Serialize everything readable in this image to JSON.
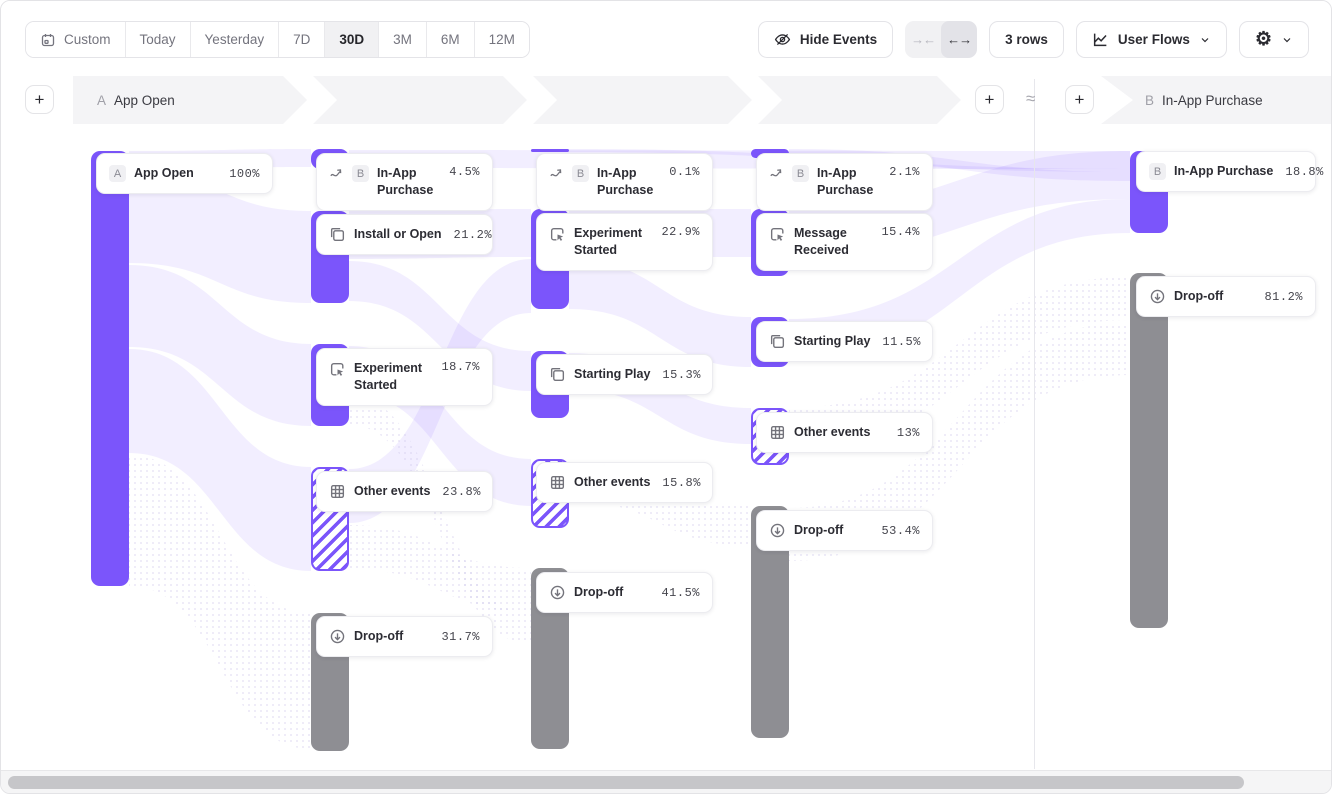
{
  "toolbar": {
    "ranges": [
      "Custom",
      "Today",
      "Yesterday",
      "7D",
      "30D",
      "3M",
      "6M",
      "12M"
    ],
    "active_range": "30D",
    "hide_events": "Hide Events",
    "rows": "3 rows",
    "view": "User Flows"
  },
  "icons": {
    "collapse": "→←",
    "expand": "←→",
    "gear": "⚙",
    "approx": "≈",
    "plus": "+"
  },
  "header": {
    "start_badge": "A",
    "start_label": "App Open",
    "end_badge": "B",
    "end_label": "In-App Purchase"
  },
  "colors": {
    "accent_purple": "#7b55fb",
    "dropoff_gray": "#8e8e93",
    "ribbon_tint": "rgba(123,85,251,0.10)"
  },
  "chart_data": {
    "type": "sankey",
    "unit": "%",
    "title": "User Flows: App Open → In-App Purchase",
    "columns": [
      {
        "name": "step-1",
        "nodes": [
          {
            "label": "App Open",
            "badge": "A",
            "pct": "100%",
            "value": 100,
            "kind": "event",
            "icon": null,
            "bar": [
              90,
              150,
              435
            ],
            "card": [
              95,
              152,
              40
            ],
            "nowrap": true
          }
        ]
      },
      {
        "name": "step-2",
        "nodes": [
          {
            "label": "In-App Purchase",
            "badge": "B",
            "pct": "4.5%",
            "value": 4.5,
            "kind": "goal",
            "icon": "flow-arrow-icon",
            "bar": [
              310,
              148,
              20
            ],
            "card": [
              315,
              152,
              50
            ]
          },
          {
            "label": "Install or Open",
            "pct": "21.2%",
            "value": 21.2,
            "kind": "event",
            "icon": "copy-icon",
            "bar": [
              310,
              210,
              92
            ],
            "card": [
              315,
              213,
              40
            ],
            "nowrap": true
          },
          {
            "label": "Experiment Started",
            "pct": "18.7%",
            "value": 18.7,
            "kind": "event",
            "icon": "click-icon",
            "bar": [
              310,
              343,
              82
            ],
            "card": [
              315,
              347,
              50
            ]
          },
          {
            "label": "Other events",
            "pct": "23.8%",
            "value": 23.8,
            "kind": "other",
            "icon": "grid-icon",
            "bar": [
              310,
              466,
              104
            ],
            "card": [
              315,
              470,
              40
            ],
            "nowrap": true
          },
          {
            "label": "Drop-off",
            "pct": "31.7%",
            "value": 31.7,
            "kind": "dropoff",
            "icon": "dropoff-icon",
            "bar": [
              310,
              612,
              138
            ],
            "card": [
              315,
              615,
              40
            ],
            "nowrap": true
          }
        ]
      },
      {
        "name": "step-3",
        "nodes": [
          {
            "label": "In-App Purchase",
            "badge": "B",
            "pct": "0.1%",
            "value": 0.1,
            "kind": "goal",
            "icon": "flow-arrow-icon",
            "bar": [
              530,
              148,
              3
            ],
            "card": [
              535,
              152,
              50
            ]
          },
          {
            "label": "Experiment Started",
            "pct": "22.9%",
            "value": 22.9,
            "kind": "event",
            "icon": "click-icon",
            "bar": [
              530,
              208,
              100
            ],
            "card": [
              535,
              212,
              50
            ]
          },
          {
            "label": "Starting Play",
            "pct": "15.3%",
            "value": 15.3,
            "kind": "event",
            "icon": "copy-icon",
            "bar": [
              530,
              350,
              67
            ],
            "card": [
              535,
              353,
              40
            ],
            "nowrap": true
          },
          {
            "label": "Other events",
            "pct": "15.8%",
            "value": 15.8,
            "kind": "other",
            "icon": "grid-icon",
            "bar": [
              530,
              458,
              69
            ],
            "card": [
              535,
              461,
              40
            ],
            "nowrap": true
          },
          {
            "label": "Drop-off",
            "pct": "41.5%",
            "value": 41.5,
            "kind": "dropoff",
            "icon": "dropoff-icon",
            "bar": [
              530,
              567,
              181
            ],
            "card": [
              535,
              571,
              40
            ],
            "nowrap": true
          }
        ]
      },
      {
        "name": "step-4",
        "nodes": [
          {
            "label": "In-App Purchase",
            "badge": "B",
            "pct": "2.1%",
            "value": 2.1,
            "kind": "goal",
            "icon": "flow-arrow-icon",
            "bar": [
              750,
              148,
              9
            ],
            "card": [
              755,
              152,
              50
            ]
          },
          {
            "label": "Message Received",
            "pct": "15.4%",
            "value": 15.4,
            "kind": "event",
            "icon": "click-icon",
            "bar": [
              750,
              208,
              67
            ],
            "card": [
              755,
              212,
              50
            ]
          },
          {
            "label": "Starting Play",
            "pct": "11.5%",
            "value": 11.5,
            "kind": "event",
            "icon": "copy-icon",
            "bar": [
              750,
              316,
              50
            ],
            "card": [
              755,
              320,
              40
            ],
            "nowrap": true
          },
          {
            "label": "Other events",
            "pct": "13%",
            "value": 13,
            "kind": "other",
            "icon": "grid-icon",
            "bar": [
              750,
              407,
              57
            ],
            "card": [
              755,
              411,
              40
            ],
            "nowrap": true
          },
          {
            "label": "Drop-off",
            "pct": "53.4%",
            "value": 53.4,
            "kind": "dropoff",
            "icon": "dropoff-icon",
            "bar": [
              750,
              505,
              232
            ],
            "card": [
              755,
              509,
              40
            ],
            "nowrap": true
          }
        ]
      },
      {
        "name": "goal",
        "nodes": [
          {
            "label": "In-App Purchase",
            "badge": "B",
            "pct": "18.8%",
            "value": 18.8,
            "kind": "goal-final",
            "icon": null,
            "bar": [
              1129,
              150,
              82
            ],
            "card": [
              1135,
              150,
              40
            ],
            "nowrap": true
          },
          {
            "label": "Drop-off",
            "pct": "81.2%",
            "value": 81.2,
            "kind": "dropoff",
            "icon": "dropoff-icon",
            "bar": [
              1129,
              272,
              355
            ],
            "card": [
              1135,
              275,
              40
            ],
            "nowrap": true
          }
        ]
      }
    ],
    "links": [
      {
        "s": [
          128,
          150,
          168
        ],
        "t": [
          310,
          148,
          166
        ],
        "style": "solid"
      },
      {
        "s": [
          128,
          170,
          262
        ],
        "t": [
          310,
          210,
          302
        ],
        "style": "solid"
      },
      {
        "s": [
          128,
          264,
          346
        ],
        "t": [
          310,
          343,
          425
        ],
        "style": "solid"
      },
      {
        "s": [
          128,
          348,
          452
        ],
        "t": [
          310,
          466,
          570
        ],
        "style": "solid"
      },
      {
        "s": [
          128,
          454,
          585
        ],
        "t": [
          310,
          612,
          748
        ],
        "style": "dotted"
      },
      {
        "s": [
          348,
          210,
          258
        ],
        "t": [
          530,
          208,
          256
        ],
        "style": "solid"
      },
      {
        "s": [
          348,
          260,
          300
        ],
        "t": [
          530,
          350,
          390
        ],
        "style": "solid"
      },
      {
        "s": [
          348,
          345,
          392
        ],
        "t": [
          530,
          458,
          505
        ],
        "style": "solid"
      },
      {
        "s": [
          348,
          468,
          522
        ],
        "t": [
          530,
          258,
          312
        ],
        "style": "solid"
      },
      {
        "s": [
          348,
          524,
          568
        ],
        "t": [
          530,
          567,
          611
        ],
        "style": "dotted"
      },
      {
        "s": [
          348,
          394,
          424
        ],
        "t": [
          530,
          613,
          643
        ],
        "style": "dotted"
      },
      {
        "s": [
          568,
          208,
          256
        ],
        "t": [
          750,
          208,
          256
        ],
        "style": "solid"
      },
      {
        "s": [
          568,
          258,
          308
        ],
        "t": [
          750,
          316,
          366
        ],
        "style": "solid"
      },
      {
        "s": [
          568,
          352,
          388
        ],
        "t": [
          750,
          407,
          443
        ],
        "style": "solid"
      },
      {
        "s": [
          568,
          460,
          500
        ],
        "t": [
          750,
          505,
          545
        ],
        "style": "dotted"
      },
      {
        "s": [
          788,
          208,
          256
        ],
        "t": [
          1129,
          150,
          198
        ],
        "style": "solid"
      },
      {
        "s": [
          788,
          318,
          360
        ],
        "t": [
          1129,
          198,
          232
        ],
        "style": "solid"
      },
      {
        "s": [
          788,
          407,
          450
        ],
        "t": [
          1129,
          276,
          319
        ],
        "style": "dotted"
      },
      {
        "s": [
          788,
          507,
          560
        ],
        "t": [
          1129,
          321,
          374
        ],
        "style": "dotted"
      },
      {
        "s": [
          348,
          149,
          167
        ],
        "t": [
          1129,
          150,
          168
        ],
        "style": "solid"
      },
      {
        "s": [
          568,
          148,
          151
        ],
        "t": [
          1129,
          168,
          171
        ],
        "style": "solid"
      },
      {
        "s": [
          788,
          148,
          157
        ],
        "t": [
          1129,
          171,
          180
        ],
        "style": "solid"
      }
    ]
  }
}
